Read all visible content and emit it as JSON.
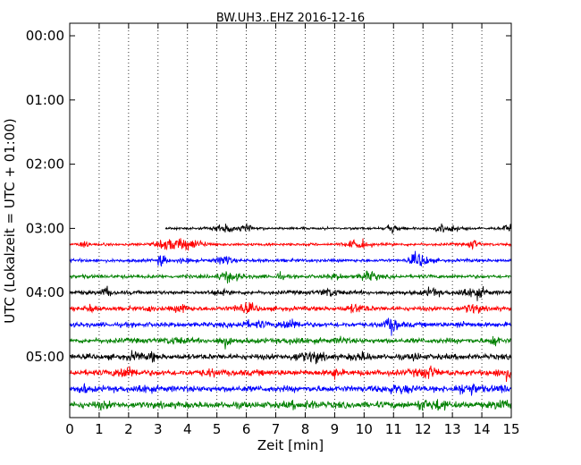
{
  "chart_data": {
    "type": "line",
    "title": "BW.UH3..EHZ 2016-12-16",
    "xlabel": "Zeit  [min]",
    "ylabel": "UTC (Lokalzeit = UTC + 01:00)",
    "xlim": [
      0,
      15
    ],
    "xticks": [
      "0",
      "1",
      "2",
      "3",
      "4",
      "5",
      "6",
      "7",
      "8",
      "9",
      "10",
      "11",
      "12",
      "13",
      "14",
      "15"
    ],
    "yticks": [
      "00:00",
      "01:00",
      "02:00",
      "03:00",
      "04:00",
      "05:00"
    ],
    "grid": "vertical-dotted",
    "colors": [
      "#000000",
      "#ff0000",
      "#0000ff",
      "#008000"
    ],
    "series": [
      {
        "offset_min": 180,
        "start_min": 3.25,
        "end_min": 15,
        "color": "#000000"
      },
      {
        "offset_min": 195,
        "start_min": 0,
        "end_min": 15,
        "color": "#ff0000"
      },
      {
        "offset_min": 210,
        "start_min": 0,
        "end_min": 15,
        "color": "#0000ff"
      },
      {
        "offset_min": 225,
        "start_min": 0,
        "end_min": 15,
        "color": "#008000"
      },
      {
        "offset_min": 240,
        "start_min": 0,
        "end_min": 15,
        "color": "#000000"
      },
      {
        "offset_min": 255,
        "start_min": 0,
        "end_min": 15,
        "color": "#ff0000"
      },
      {
        "offset_min": 270,
        "start_min": 0,
        "end_min": 15,
        "color": "#0000ff"
      },
      {
        "offset_min": 285,
        "start_min": 0,
        "end_min": 15,
        "color": "#008000"
      },
      {
        "offset_min": 300,
        "start_min": 0,
        "end_min": 15,
        "color": "#000000"
      },
      {
        "offset_min": 315,
        "start_min": 0,
        "end_min": 15,
        "color": "#ff0000"
      },
      {
        "offset_min": 330,
        "start_min": 0,
        "end_min": 15,
        "color": "#0000ff"
      },
      {
        "offset_min": 345,
        "start_min": 0,
        "end_min": 15,
        "color": "#008000"
      }
    ]
  }
}
